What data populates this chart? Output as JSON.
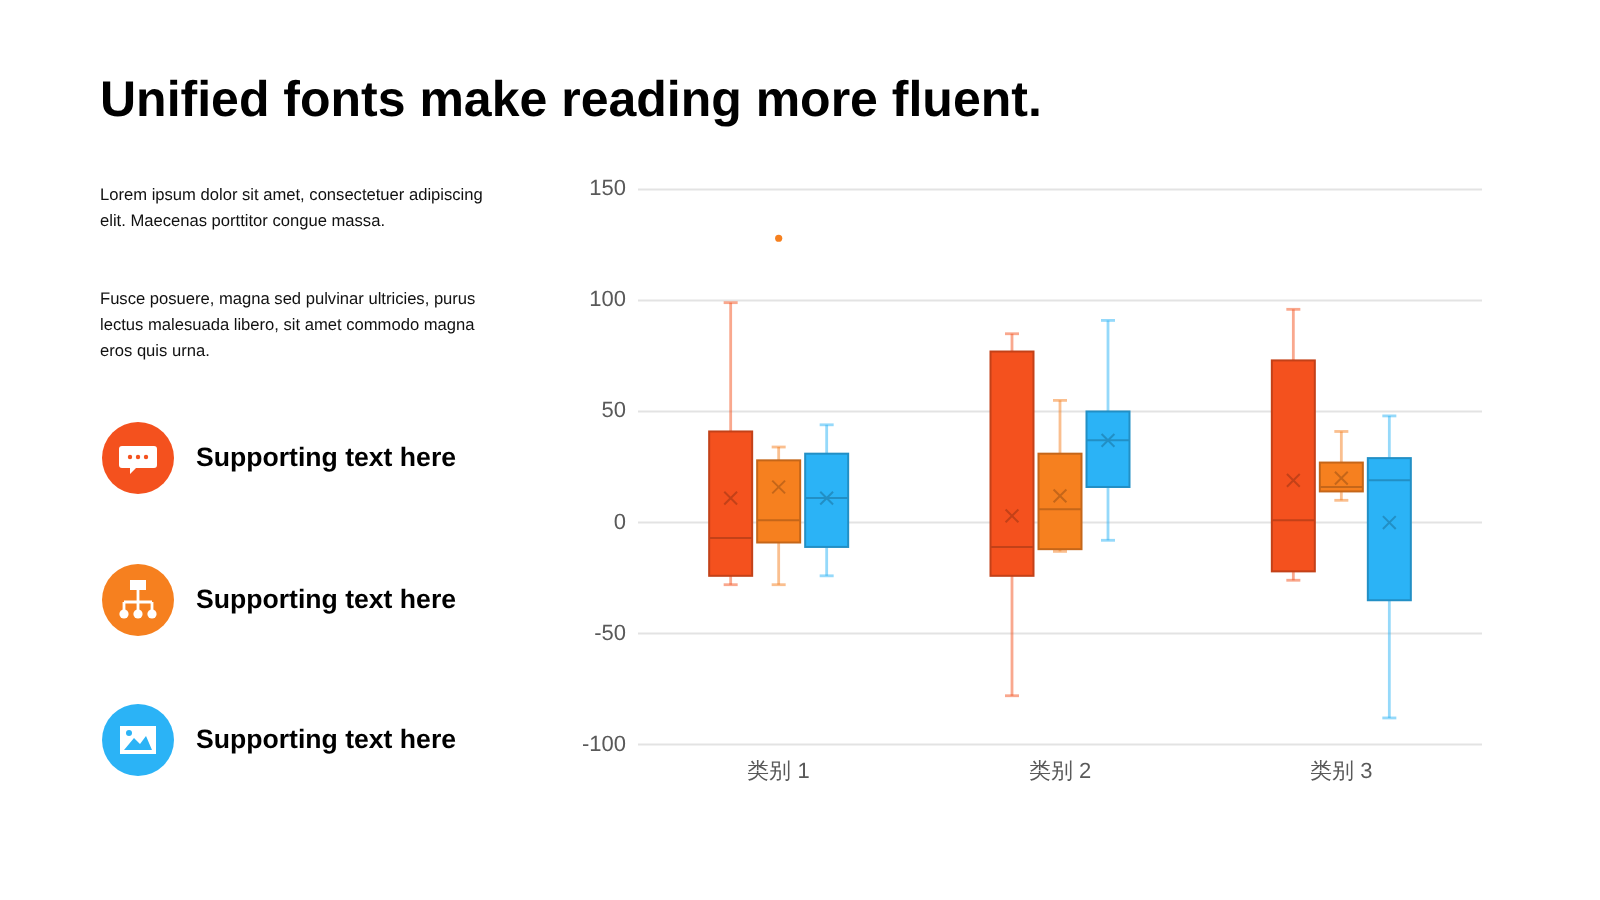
{
  "chart_data": {
    "type": "box",
    "title": "Unified fonts make reading more fluent.",
    "annotations": [
      "Lorem ipsum dolor sit amet, consectetuer adipiscing elit. Maecenas porttitor congue massa.",
      "Fusce posuere, magna sed pulvinar ultricies, purus lectus malesuada libero, sit amet commodo magna eros quis urna.",
      "Supporting text here",
      "Supporting text here",
      "Supporting text here"
    ],
    "categories": [
      "类别 1",
      "类别 2",
      "类别 3"
    ],
    "series": [
      {
        "color": "#f4511e",
        "boxes": [
          {
            "low": -28,
            "q1": -24,
            "median": -7,
            "q3": 41,
            "high": 99,
            "mean": 11
          },
          {
            "low": -78,
            "q1": -24,
            "median": -11,
            "q3": 77,
            "high": 85,
            "mean": 3
          },
          {
            "low": -26,
            "q1": -22,
            "median": 1,
            "q3": 73,
            "high": 96,
            "mean": 19
          }
        ]
      },
      {
        "color": "#f6801f",
        "boxes": [
          {
            "low": -28,
            "q1": -9,
            "median": 1,
            "q3": 28,
            "high": 34,
            "mean": 16,
            "outliers": [
              128
            ]
          },
          {
            "low": -13,
            "q1": -12,
            "median": 6,
            "q3": 31,
            "high": 55,
            "mean": 12
          },
          {
            "low": 10,
            "q1": 14,
            "median": 16,
            "q3": 27,
            "high": 41,
            "mean": 20
          }
        ]
      },
      {
        "color": "#2bb3f6",
        "boxes": [
          {
            "low": -24,
            "q1": -11,
            "median": 11,
            "q3": 31,
            "high": 44,
            "mean": 11
          },
          {
            "low": -8,
            "q1": 16,
            "median": 37,
            "q3": 50,
            "high": 91,
            "mean": 37
          },
          {
            "low": -88,
            "q1": -35,
            "median": 19,
            "q3": 29,
            "high": 48,
            "mean": 0
          }
        ]
      }
    ],
    "ylim": [
      -100,
      150
    ],
    "yticks": [
      -100,
      -50,
      0,
      50,
      100,
      150
    ],
    "grid": "y"
  }
}
